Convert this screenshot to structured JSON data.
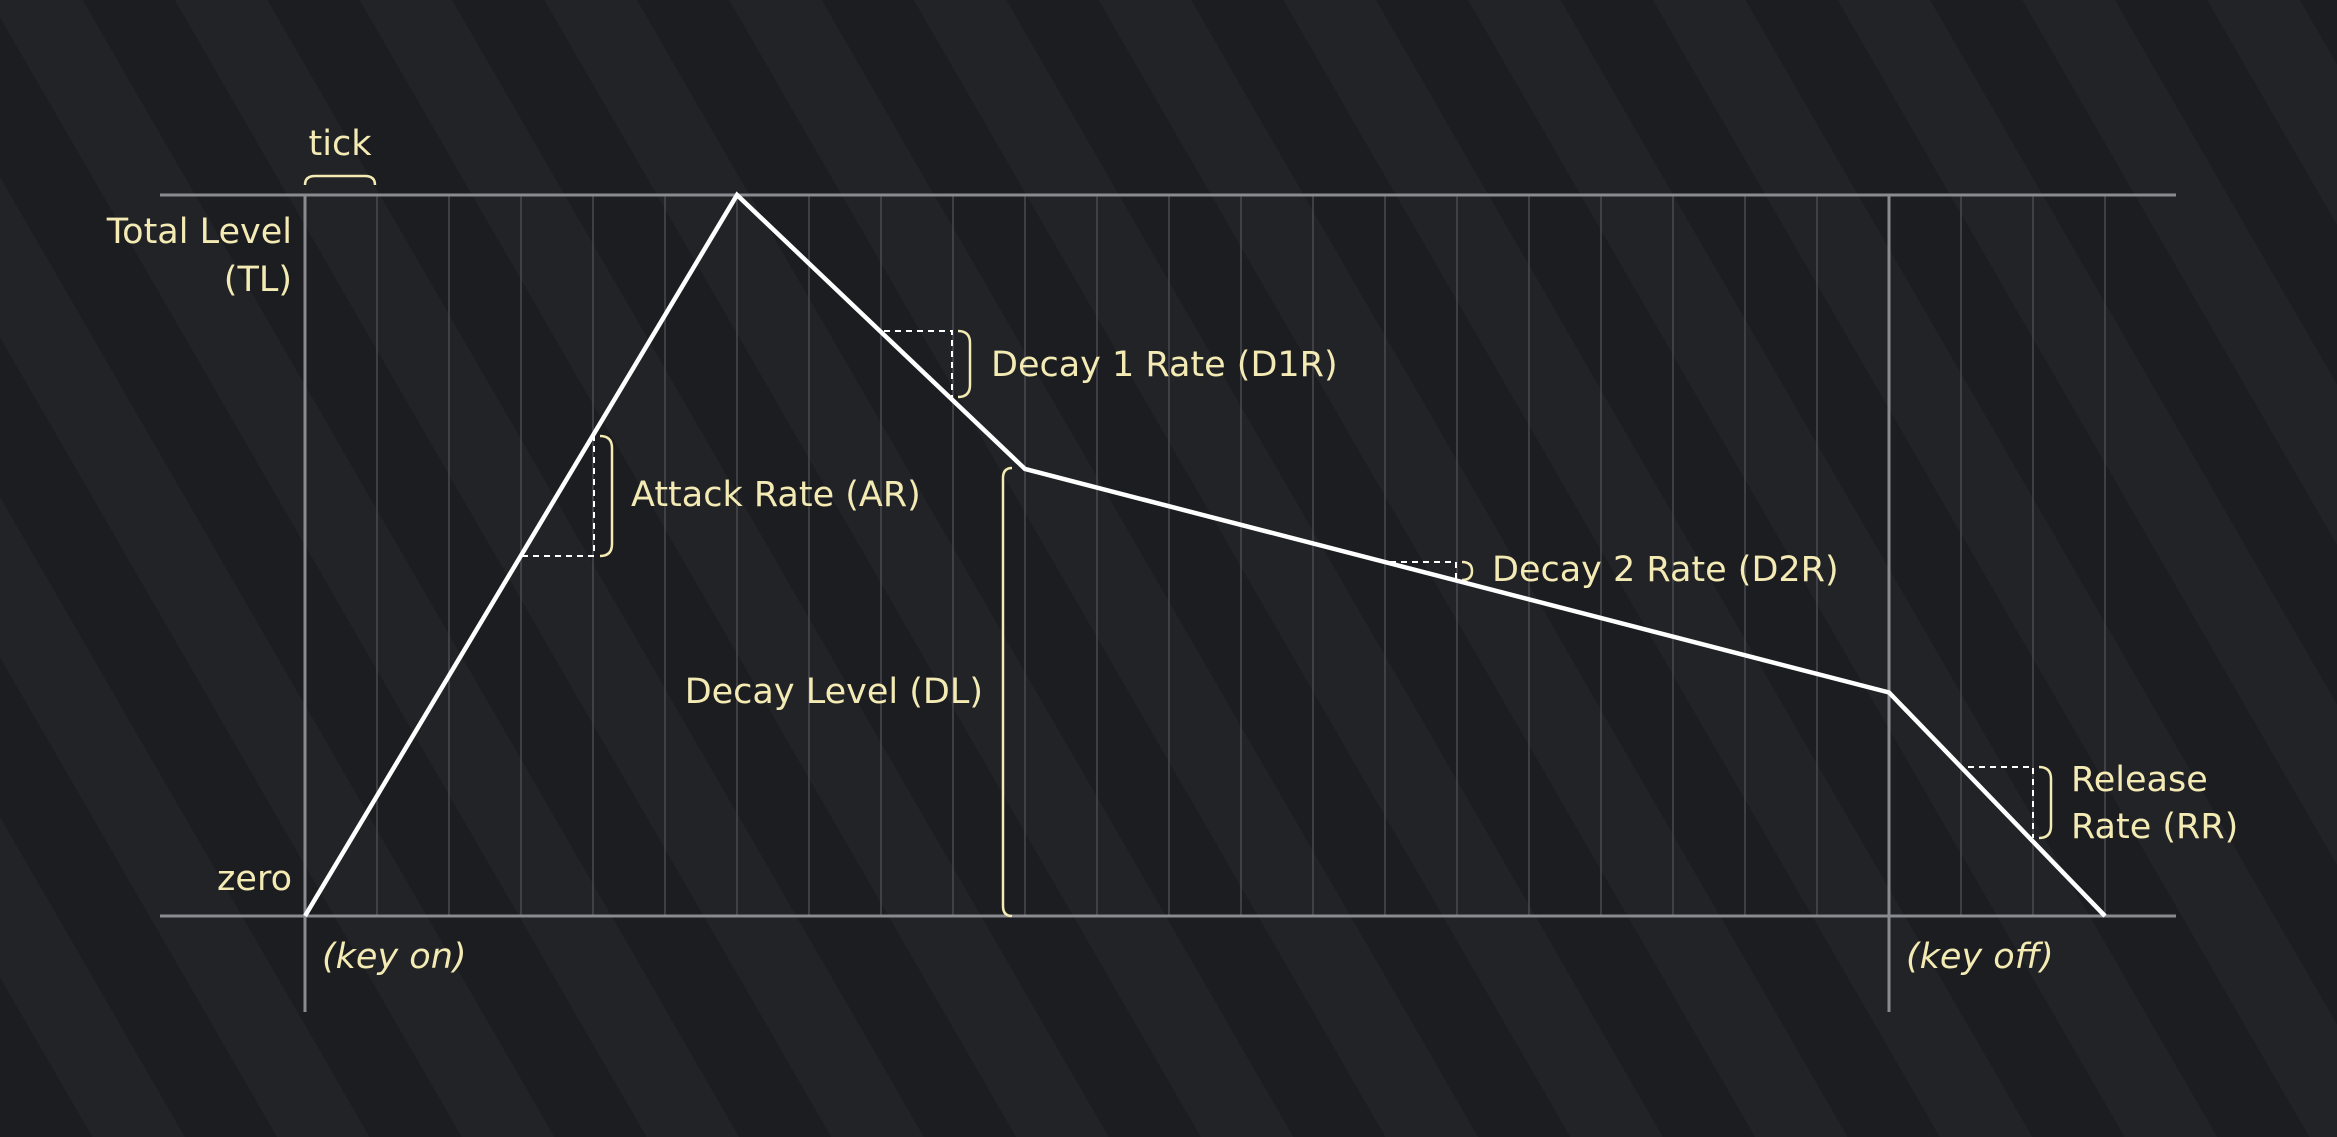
{
  "colors": {
    "background": "#1d1e22",
    "label": "#f3eab4",
    "envelope": "#ffffff",
    "grid": "#4a4b50",
    "axis": "#8a8b90"
  },
  "labels": {
    "tick": "tick",
    "total_level_line1": "Total Level",
    "total_level_line2": "(TL)",
    "zero": "zero",
    "key_on": "(key on)",
    "key_off": "(key off)",
    "attack_rate": "Attack Rate (AR)",
    "decay1_rate": "Decay 1 Rate (D1R)",
    "decay2_rate": "Decay 2 Rate (D2R)",
    "decay_level": "Decay Level (DL)",
    "release_line1": "Release",
    "release_line2": "Rate (RR)"
  },
  "envelope": {
    "level_range": [
      0,
      1
    ],
    "tick_count": 25,
    "key_off_tick": 22,
    "points": [
      {
        "tick": 0,
        "level": 0
      },
      {
        "tick": 6,
        "level": 1
      },
      {
        "tick": 10,
        "level": 0.62
      },
      {
        "tick": 22,
        "level": 0.31
      },
      {
        "tick": 25,
        "level": 0
      }
    ]
  }
}
